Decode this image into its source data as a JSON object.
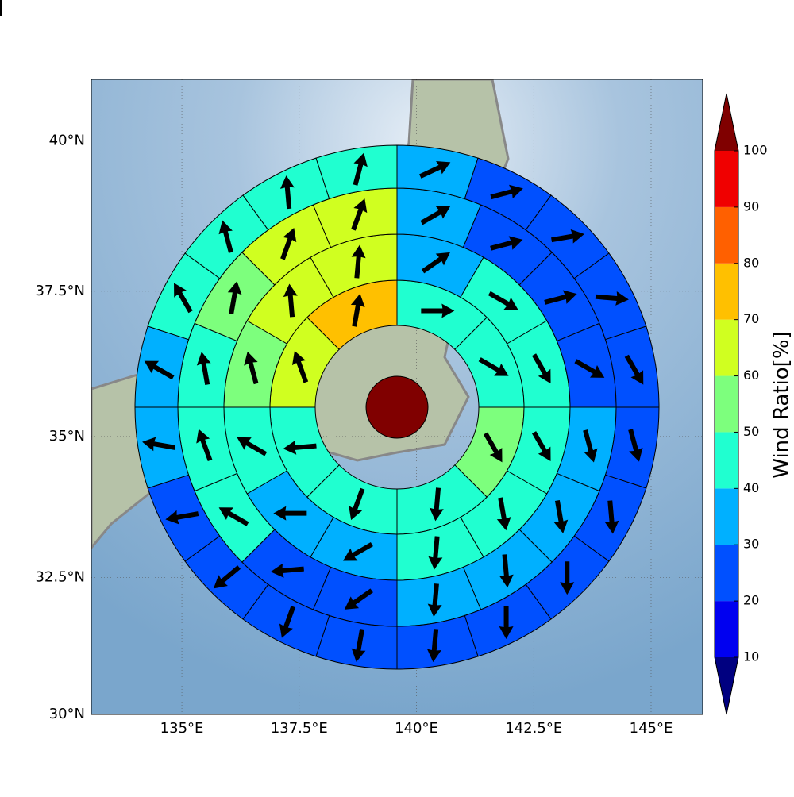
{
  "chart_data": {
    "type": "polar-sector-map",
    "xlim": [
      133.07,
      146.1
    ],
    "ylim": [
      30,
      41
    ],
    "xticks": [
      {
        "value": 135,
        "label": "135°E"
      },
      {
        "value": 137.5,
        "label": "137.5°E"
      },
      {
        "value": 140,
        "label": "140°E"
      },
      {
        "value": 142.5,
        "label": "142.5°E"
      },
      {
        "value": 145,
        "label": "145°E"
      }
    ],
    "yticks": [
      {
        "value": 30,
        "label": "30°N"
      },
      {
        "value": 32.5,
        "label": "32.5°N"
      },
      {
        "value": 35,
        "label": "35°N"
      },
      {
        "value": 37.5,
        "label": "37.5°N"
      },
      {
        "value": 40,
        "label": "40°N"
      }
    ],
    "grid": true,
    "center": {
      "value": 105
    },
    "rings": [
      {
        "values": [
          45,
          45,
          55,
          45,
          45,
          45,
          65,
          75
        ],
        "directions": [
          90,
          120,
          150,
          185,
          200,
          265,
          340,
          10
        ]
      },
      {
        "values": [
          35,
          45,
          45,
          45,
          45,
          45,
          35,
          35,
          45,
          55,
          65,
          65
        ],
        "directions": [
          55,
          120,
          150,
          150,
          170,
          185,
          240,
          270,
          300,
          345,
          355,
          5
        ]
      },
      {
        "values": [
          35,
          25,
          25,
          25,
          35,
          35,
          35,
          35,
          25,
          25,
          45,
          45,
          45,
          55,
          65,
          65
        ],
        "directions": [
          60,
          75,
          75,
          120,
          165,
          170,
          175,
          185,
          235,
          265,
          300,
          340,
          350,
          10,
          20,
          20
        ]
      },
      {
        "values": [
          35,
          25,
          25,
          25,
          25,
          25,
          25,
          25,
          25,
          25,
          25,
          25,
          25,
          25,
          35,
          35,
          45,
          45,
          45,
          45
        ],
        "directions": [
          65,
          75,
          80,
          95,
          150,
          165,
          175,
          180,
          180,
          185,
          190,
          200,
          230,
          260,
          280,
          300,
          330,
          345,
          355,
          15
        ]
      },
      {
        "values": [
          35,
          25,
          15,
          15,
          15,
          15,
          25,
          25,
          25,
          25,
          25,
          25,
          15,
          15,
          25,
          25,
          35,
          35,
          35,
          45
        ],
        "directions": [
          70,
          80,
          80,
          95,
          105,
          150,
          170,
          180,
          180,
          180,
          185,
          190,
          200,
          230,
          250,
          300,
          330,
          340,
          350,
          15
        ]
      }
    ],
    "colorbar": {
      "label": "Wind Ratio[%]",
      "levels": [
        10,
        20,
        30,
        40,
        50,
        60,
        70,
        80,
        90,
        100
      ],
      "colors": [
        "#0000f0",
        "#0050ff",
        "#00b0ff",
        "#20ffd0",
        "#7dff7d",
        "#d0ff20",
        "#ffc000",
        "#ff6000",
        "#f00000"
      ],
      "under_color": "#000080",
      "over_color": "#800000"
    }
  }
}
